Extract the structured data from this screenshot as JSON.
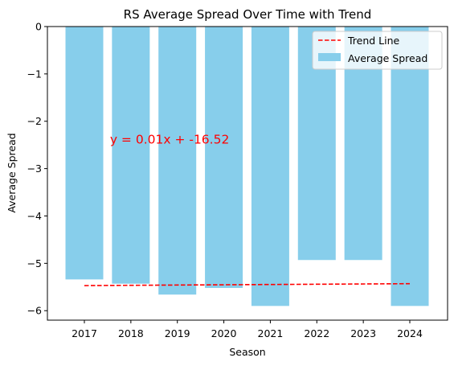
{
  "chart_data": {
    "type": "bar",
    "title": "RS Average Spread Over Time with Trend",
    "xlabel": "Season",
    "ylabel": "Average Spread",
    "categories": [
      "2017",
      "2018",
      "2019",
      "2020",
      "2021",
      "2022",
      "2023",
      "2024"
    ],
    "series": [
      {
        "name": "Average Spread",
        "type": "bar",
        "color": "#87ceeb",
        "values": [
          -5.34,
          -5.43,
          -5.66,
          -5.52,
          -5.9,
          -4.93,
          -4.93,
          -5.9
        ]
      },
      {
        "name": "Trend Line",
        "type": "line",
        "style": "dashed",
        "color": "#ff0000",
        "x": [
          2017,
          2024
        ],
        "values": [
          -5.47,
          -5.43
        ]
      }
    ],
    "ylim": [
      -6.2,
      0
    ],
    "yticks": [
      0,
      -1,
      -2,
      -3,
      -4,
      -5,
      -6
    ],
    "ytick_labels": [
      "0",
      "−1",
      "−2",
      "−3",
      "−4",
      "−5",
      "−6"
    ],
    "grid": false,
    "legend": {
      "placement": "top-right",
      "entries": [
        "Trend Line",
        "Average Spread"
      ]
    },
    "annotations": [
      {
        "text": "y = 0.01x + -16.52",
        "color": "#ff0000",
        "anchor_x": 2017.55,
        "anchor_y": -2.39
      }
    ]
  }
}
